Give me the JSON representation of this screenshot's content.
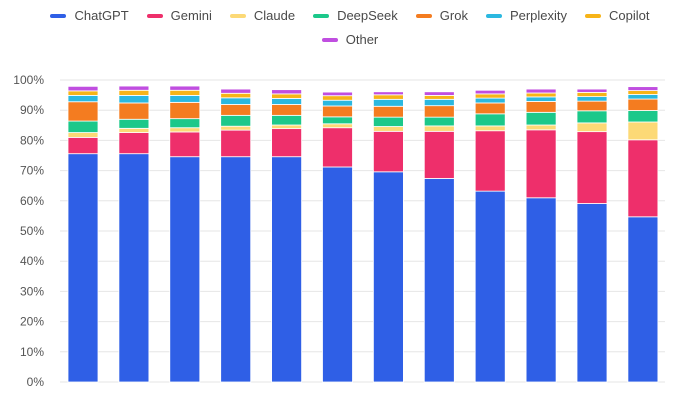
{
  "chart_data": {
    "type": "bar",
    "stacked": true,
    "title": "",
    "xlabel": "",
    "ylabel": "",
    "ylim": [
      0,
      100
    ],
    "y_ticks": [
      "0%",
      "10%",
      "20%",
      "30%",
      "40%",
      "50%",
      "60%",
      "70%",
      "80%",
      "90%",
      "100%"
    ],
    "grid": true,
    "legend_position": "top-center",
    "categories": [
      "",
      "",
      "",
      "",
      "",
      "",
      "",
      "",
      "",
      "",
      "",
      ""
    ],
    "series": [
      {
        "name": "ChatGPT",
        "color": "#2f5fe6",
        "values": [
          75.6,
          75.6,
          74.6,
          74.6,
          74.6,
          71.2,
          69.6,
          67.4,
          63.2,
          61.0,
          59.1,
          54.7
        ]
      },
      {
        "name": "Gemini",
        "color": "#ee2f6b",
        "values": [
          5.4,
          7.0,
          8.2,
          8.8,
          9.3,
          13.0,
          13.4,
          15.6,
          20.0,
          22.5,
          23.8,
          25.5
        ]
      },
      {
        "name": "Claude",
        "color": "#fcd976",
        "values": [
          1.6,
          1.4,
          1.4,
          1.3,
          1.2,
          1.3,
          1.6,
          1.8,
          1.6,
          1.6,
          2.9,
          5.9
        ]
      },
      {
        "name": "DeepSeek",
        "color": "#1cc88a",
        "values": [
          3.8,
          3.0,
          3.0,
          3.6,
          3.2,
          2.3,
          3.1,
          2.9,
          4.0,
          4.2,
          4.0,
          3.8
        ]
      },
      {
        "name": "Grok",
        "color": "#f47c20",
        "values": [
          6.4,
          5.4,
          5.4,
          3.6,
          3.6,
          3.6,
          3.6,
          3.8,
          3.6,
          3.6,
          3.2,
          3.8
        ]
      },
      {
        "name": "Perplexity",
        "color": "#2bb8e0",
        "values": [
          2.1,
          2.5,
          2.3,
          2.2,
          2.0,
          1.9,
          2.3,
          2.1,
          1.6,
          1.5,
          1.5,
          1.5
        ]
      },
      {
        "name": "Copilot",
        "color": "#f7b418",
        "values": [
          1.5,
          1.7,
          1.7,
          1.5,
          1.5,
          1.5,
          1.5,
          1.3,
          1.4,
          1.3,
          1.4,
          1.3
        ]
      },
      {
        "name": "Other",
        "color": "#c04ee0",
        "values": [
          1.5,
          1.4,
          1.4,
          1.4,
          1.4,
          1.2,
          1.0,
          1.2,
          1.2,
          1.3,
          1.1,
          1.3
        ]
      }
    ]
  }
}
